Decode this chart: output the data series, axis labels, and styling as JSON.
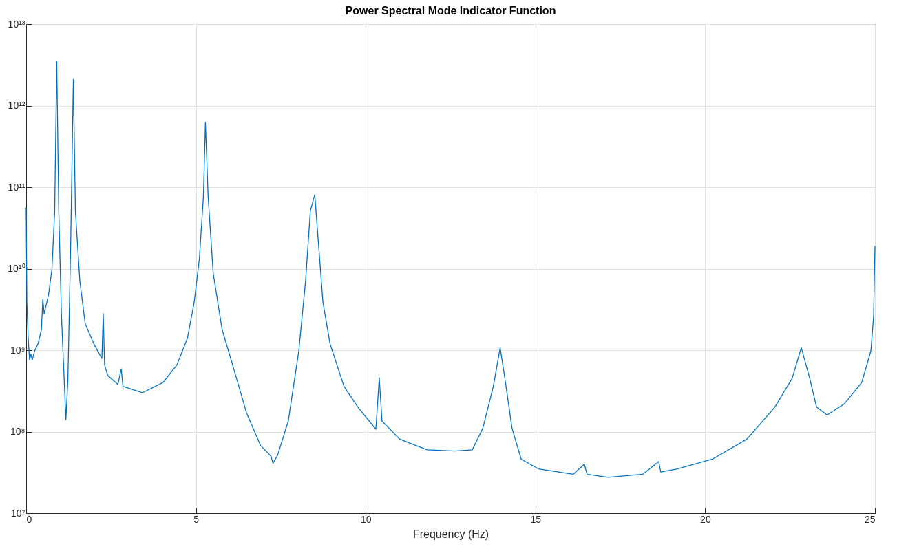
{
  "chart_data": {
    "type": "line",
    "title": "Power Spectral Mode Indicator Function",
    "xlabel": "Frequency (Hz)",
    "log": "y",
    "grid": true,
    "xlim": [
      0,
      25
    ],
    "xticks": [
      0,
      5,
      10,
      15,
      20,
      25
    ],
    "ylim": [
      10000000.0,
      10000000000000.0
    ],
    "yticks": [
      {
        "value": 10000000.0,
        "label": "10⁷"
      },
      {
        "value": 100000000.0,
        "label": "10⁸"
      },
      {
        "value": 1000000000.0,
        "label": "10⁹"
      },
      {
        "value": 10000000000.0,
        "label": "10¹⁰"
      },
      {
        "value": 100000000000.0,
        "label": "10¹¹"
      },
      {
        "value": 1000000000000.0,
        "label": "10¹²"
      },
      {
        "value": 10000000000000.0,
        "label": "10¹³"
      }
    ],
    "x": [
      0,
      0.02,
      0.06,
      0.1,
      0.14,
      0.18,
      0.25,
      0.35,
      0.45,
      0.49,
      0.53,
      0.66,
      0.76,
      0.84,
      0.9,
      0.96,
      1.04,
      1.11,
      1.17,
      1.23,
      1.31,
      1.39,
      1.45,
      1.58,
      1.74,
      1.99,
      2.23,
      2.27,
      2.31,
      2.4,
      2.7,
      2.8,
      2.85,
      3.42,
      4.03,
      4.44,
      4.75,
      4.95,
      5.1,
      5.22,
      5.28,
      5.36,
      5.51,
      5.77,
      6.08,
      6.49,
      6.9,
      7.21,
      7.27,
      7.41,
      7.72,
      8.03,
      8.23,
      8.37,
      8.5,
      8.6,
      8.74,
      8.95,
      9.36,
      9.77,
      10.3,
      10.4,
      10.48,
      11.0,
      11.81,
      12.63,
      13.14,
      13.45,
      13.76,
      13.96,
      14.1,
      14.31,
      14.58,
      15.09,
      16.11,
      16.44,
      16.52,
      17.14,
      18.16,
      18.63,
      18.69,
      19.18,
      20.21,
      21.23,
      22.05,
      22.56,
      22.83,
      23.08,
      23.28,
      23.59,
      24.1,
      24.61,
      24.88,
      24.96,
      25.0
    ],
    "series": [
      {
        "color": "#0072bd",
        "values": [
          56000000000.0,
          3900000000.0,
          1400000000.0,
          760000000.0,
          890000000.0,
          760000000.0,
          980000000.0,
          1200000000.0,
          1800000000.0,
          4200000000.0,
          2800000000.0,
          4800000000.0,
          10000000000.0,
          51000000000.0,
          3500000000000.0,
          51000000000.0,
          2600000000.0,
          540000000.0,
          140000000.0,
          450000000.0,
          19000000000.0,
          2100000000000.0,
          51000000000.0,
          7100000000.0,
          2100000000.0,
          1200000000.0,
          790000000.0,
          2800000000.0,
          660000000.0,
          490000000.0,
          380000000.0,
          590000000.0,
          360000000.0,
          300000000.0,
          400000000.0,
          660000000.0,
          1400000000.0,
          3900000000.0,
          13000000000.0,
          76000000000.0,
          620000000000.0,
          76000000000.0,
          8700000000.0,
          1800000000.0,
          660000000.0,
          170000000.0,
          68000000.0,
          50000000.0,
          41000000.0,
          52000000.0,
          135000000.0,
          980000000.0,
          7100000000.0,
          51000000000.0,
          81000000000.0,
          23000000000.0,
          3900000000.0,
          1200000000.0,
          360000000.0,
          200000000.0,
          107000000.0,
          460000000.0,
          135000000.0,
          81000000.0,
          60000000.0,
          58000000.0,
          60000000.0,
          110000000.0,
          360000000.0,
          1070000000.0,
          450000000.0,
          110000000.0,
          46000000.0,
          35000000.0,
          30000000.0,
          40000000.0,
          30000000.0,
          27500000.0,
          30000000.0,
          43000000.0,
          32000000.0,
          35000000.0,
          46000000.0,
          81000000.0,
          200000000.0,
          450000000.0,
          1070000000.0,
          450000000.0,
          200000000.0,
          160000000.0,
          220000000.0,
          400000000.0,
          980000000.0,
          2600000000.0,
          19000000000.0
        ]
      }
    ]
  }
}
